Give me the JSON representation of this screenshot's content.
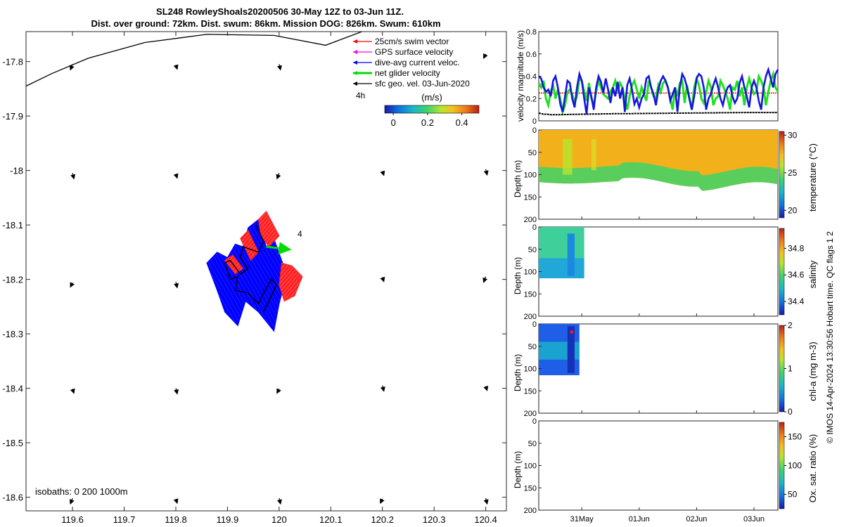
{
  "figure": {
    "title_line1": "SL248 RowleyShoals20200506 30-May 12Z to 03-Jun 11Z.",
    "title_line2": "Dist. over ground: 72km. Dist. swum: 86km. Mission DOG: 826km. Swum: 610km",
    "credit": "© IMOS 14-Apr-2024 13:30:56 Hobart time. QC flags 1  2"
  },
  "map": {
    "xticks": [
      "119.6",
      "119.7",
      "119.8",
      "119.9",
      "120",
      "120.1",
      "120.2",
      "120.3",
      "120.4"
    ],
    "xtick_values": [
      119.6,
      119.7,
      119.8,
      119.9,
      120.0,
      120.1,
      120.2,
      120.3,
      120.4
    ],
    "yticks": [
      "-17.8",
      "-17.9",
      "-18",
      "-18.1",
      "-18.2",
      "-18.3",
      "-18.4",
      "-18.5",
      "-18.6"
    ],
    "ytick_values": [
      -17.8,
      -17.9,
      -18.0,
      -18.1,
      -18.2,
      -18.3,
      -18.4,
      -18.5,
      -18.6
    ],
    "xlim": [
      119.51,
      120.44
    ],
    "ylim": [
      -18.625,
      -17.745
    ],
    "isobath_label": "isobaths: 0   200  1000m",
    "legend": [
      {
        "label": "25cm/s swim vector",
        "color": "#ff0000"
      },
      {
        "label": "GPS surface velocity",
        "color": "#ff00ff"
      },
      {
        "label": "dive-avg current veloc.",
        "color": "#0000ff"
      },
      {
        "label": "net glider velocity",
        "color": "#00dd00"
      },
      {
        "label": "sfc geo. vel. 03-Jun-2020",
        "color": "#000000"
      }
    ],
    "label_4h": "4h",
    "colorbar_title": "(m/s)",
    "colorbar_ticks": [
      "0",
      "0.2",
      "0.4"
    ],
    "colorbar_tick_values": [
      0,
      0.2,
      0.4
    ],
    "colorbar_range": [
      -0.05,
      0.5
    ],
    "net_velocity_label": "4",
    "coast": [
      [
        119.51,
        -17.845
      ],
      [
        119.56,
        -17.822
      ],
      [
        119.63,
        -17.794
      ],
      [
        119.74,
        -17.765
      ],
      [
        119.86,
        -17.75
      ],
      [
        119.99,
        -17.752
      ],
      [
        120.09,
        -17.77
      ],
      [
        120.16,
        -17.745
      ]
    ],
    "geo_arrows": [
      {
        "x": 119.6,
        "y": -17.81
      },
      {
        "x": 119.8,
        "y": -17.81
      },
      {
        "x": 120.0,
        "y": -17.81
      },
      {
        "x": 120.4,
        "y": -17.79
      },
      {
        "x": 119.6,
        "y": -18.01
      },
      {
        "x": 119.8,
        "y": -18.01
      },
      {
        "x": 120.0,
        "y": -18.01
      },
      {
        "x": 120.2,
        "y": -18.005
      },
      {
        "x": 120.4,
        "y": -18.003
      },
      {
        "x": 119.6,
        "y": -18.21
      },
      {
        "x": 119.8,
        "y": -18.21
      },
      {
        "x": 120.2,
        "y": -18.2
      },
      {
        "x": 120.4,
        "y": -18.2
      },
      {
        "x": 119.6,
        "y": -18.405
      },
      {
        "x": 119.8,
        "y": -18.405
      },
      {
        "x": 120.0,
        "y": -18.405
      },
      {
        "x": 120.2,
        "y": -18.4
      },
      {
        "x": 120.4,
        "y": -18.4
      },
      {
        "x": 119.6,
        "y": -18.607
      },
      {
        "x": 119.8,
        "y": -18.607
      },
      {
        "x": 120.0,
        "y": -18.607
      },
      {
        "x": 120.2,
        "y": -18.607
      },
      {
        "x": 120.4,
        "y": -18.607
      }
    ],
    "blue_region": [
      [
        119.88,
        -18.22
      ],
      [
        119.86,
        -18.17
      ],
      [
        119.88,
        -18.15
      ],
      [
        119.9,
        -18.16
      ],
      [
        119.915,
        -18.135
      ],
      [
        119.93,
        -18.14
      ],
      [
        119.94,
        -18.105
      ],
      [
        119.96,
        -18.09
      ],
      [
        119.975,
        -18.14
      ],
      [
        119.99,
        -18.125
      ],
      [
        120.005,
        -18.165
      ],
      [
        120.015,
        -18.19
      ],
      [
        120.0,
        -18.245
      ],
      [
        119.99,
        -18.295
      ],
      [
        119.96,
        -18.26
      ],
      [
        119.935,
        -18.24
      ],
      [
        119.92,
        -18.285
      ],
      [
        119.895,
        -18.26
      ]
    ],
    "red_regions": [
      [
        [
          119.96,
          -18.09
        ],
        [
          119.975,
          -18.075
        ],
        [
          120.0,
          -18.12
        ],
        [
          119.98,
          -18.14
        ],
        [
          119.965,
          -18.12
        ]
      ],
      [
        [
          119.925,
          -18.125
        ],
        [
          119.94,
          -18.11
        ],
        [
          119.96,
          -18.15
        ],
        [
          119.945,
          -18.165
        ]
      ],
      [
        [
          119.895,
          -18.165
        ],
        [
          119.91,
          -18.155
        ],
        [
          119.93,
          -18.18
        ],
        [
          119.915,
          -18.19
        ]
      ],
      [
        [
          120.005,
          -18.17
        ],
        [
          120.025,
          -18.175
        ],
        [
          120.045,
          -18.195
        ],
        [
          120.03,
          -18.23
        ],
        [
          120.01,
          -18.24
        ],
        [
          120.0,
          -18.21
        ]
      ]
    ],
    "track": [
      [
        119.955,
        -18.1
      ],
      [
        119.97,
        -18.13
      ],
      [
        119.96,
        -18.15
      ],
      [
        119.93,
        -18.14
      ],
      [
        119.925,
        -18.16
      ],
      [
        119.94,
        -18.18
      ],
      [
        119.925,
        -18.19
      ],
      [
        119.905,
        -18.165
      ],
      [
        119.895,
        -18.17
      ],
      [
        119.905,
        -18.2
      ],
      [
        119.92,
        -18.195
      ],
      [
        119.915,
        -18.22
      ],
      [
        119.94,
        -18.225
      ],
      [
        119.96,
        -18.245
      ],
      [
        119.97,
        -18.225
      ],
      [
        119.985,
        -18.2
      ],
      [
        119.995,
        -18.21
      ],
      [
        119.97,
        -18.26
      ]
    ],
    "net_velocity": {
      "from": [
        119.975,
        -18.14
      ],
      "to": [
        120.02,
        -18.145
      ]
    }
  },
  "velocity_panel": {
    "ylabel": "velocity magnitude (m/s)",
    "yticks": [
      "0",
      "0.2",
      "0.4",
      "0.6",
      "0.8"
    ],
    "ytick_values": [
      0,
      0.2,
      0.4,
      0.6,
      0.8
    ],
    "ylim": [
      0,
      0.8
    ],
    "xlim": [
      0,
      100
    ],
    "swim_level": 0.25,
    "blue_series": [
      0.4,
      0.38,
      0.3,
      0.26,
      0.28,
      0.22,
      0.36,
      0.4,
      0.3,
      0.15,
      0.08,
      0.22,
      0.36,
      0.34,
      0.2,
      0.12,
      0.3,
      0.42,
      0.36,
      0.2,
      0.06,
      0.3,
      0.22,
      0.1,
      0.3,
      0.4,
      0.35,
      0.25,
      0.38,
      0.28,
      0.16,
      0.3,
      0.22,
      0.35,
      0.2,
      0.3,
      0.08,
      0.32,
      0.38,
      0.28,
      0.15,
      0.2,
      0.12,
      0.2,
      0.24,
      0.38,
      0.4,
      0.3,
      0.24,
      0.14,
      0.28,
      0.36,
      0.4,
      0.36,
      0.3,
      0.18,
      0.24,
      0.3,
      0.08,
      0.3,
      0.42,
      0.38,
      0.3,
      0.2,
      0.1,
      0.22,
      0.38,
      0.42,
      0.4,
      0.3,
      0.1,
      0.2,
      0.24,
      0.32,
      0.38,
      0.3,
      0.2,
      0.14,
      0.24,
      0.3,
      0.32,
      0.22,
      0.16,
      0.2,
      0.34,
      0.4,
      0.3,
      0.22,
      0.12,
      0.3,
      0.36,
      0.3,
      0.18,
      0.1,
      0.3,
      0.4,
      0.46,
      0.38,
      0.3,
      0.42,
      0.46
    ],
    "green_series": [
      0.34,
      0.3,
      0.36,
      0.2,
      0.14,
      0.26,
      0.32,
      0.2,
      0.28,
      0.2,
      0.08,
      0.14,
      0.26,
      0.28,
      0.24,
      0.16,
      0.22,
      0.38,
      0.36,
      0.26,
      0.18,
      0.34,
      0.2,
      0.14,
      0.26,
      0.36,
      0.3,
      0.24,
      0.22,
      0.2,
      0.26,
      0.3,
      0.36,
      0.26,
      0.34,
      0.3,
      0.2,
      0.1,
      0.22,
      0.32,
      0.36,
      0.28,
      0.2,
      0.3,
      0.24,
      0.18,
      0.36,
      0.3,
      0.22,
      0.2,
      0.32,
      0.26,
      0.34,
      0.36,
      0.3,
      0.2,
      0.1,
      0.3,
      0.22,
      0.34,
      0.36,
      0.16,
      0.32,
      0.2,
      0.1,
      0.3,
      0.38,
      0.32,
      0.2,
      0.16,
      0.26,
      0.36,
      0.3,
      0.14,
      0.2,
      0.22,
      0.36,
      0.32,
      0.26,
      0.2,
      0.1,
      0.3,
      0.28,
      0.36,
      0.22,
      0.3,
      0.14,
      0.3,
      0.38,
      0.3,
      0.24,
      0.26,
      0.4,
      0.36,
      0.3,
      0.14,
      0.26,
      0.36,
      0.42,
      0.3,
      0.26
    ],
    "black_series": [
      0.07,
      0.065,
      0.06,
      0.06,
      0.058,
      0.055,
      0.055,
      0.055,
      0.055,
      0.056,
      0.056,
      0.057,
      0.057,
      0.058,
      0.058,
      0.058,
      0.059,
      0.059,
      0.06,
      0.06,
      0.06,
      0.06,
      0.061,
      0.061,
      0.062,
      0.062,
      0.062,
      0.063,
      0.063,
      0.063,
      0.063,
      0.064,
      0.064,
      0.064,
      0.064,
      0.065,
      0.065,
      0.065,
      0.065,
      0.065,
      0.066,
      0.066,
      0.066,
      0.066,
      0.066,
      0.067,
      0.067,
      0.067,
      0.067,
      0.067,
      0.068,
      0.068,
      0.068,
      0.068,
      0.068,
      0.069,
      0.069,
      0.069,
      0.069,
      0.069,
      0.07,
      0.07,
      0.07,
      0.07,
      0.07,
      0.071,
      0.071,
      0.071,
      0.071,
      0.071,
      0.072,
      0.072,
      0.072,
      0.072,
      0.072,
      0.073,
      0.073,
      0.073,
      0.073,
      0.073,
      0.074,
      0.074,
      0.074,
      0.074,
      0.074,
      0.075,
      0.075,
      0.075,
      0.075,
      0.075,
      0.075,
      0.075,
      0.075,
      0.075,
      0.075,
      0.075,
      0.075,
      0.075,
      0.075,
      0.075,
      0.075
    ]
  },
  "depth_panels": [
    {
      "key": "temperature",
      "label": "temperature (°C)",
      "ticks": [
        "20",
        "25",
        "30"
      ],
      "tick_values": [
        20,
        25,
        30
      ],
      "range": [
        19,
        30.5
      ],
      "colors": [
        "#1a1aa8",
        "#0f6fe0",
        "#19b8c8",
        "#3fd36a",
        "#b8e52d",
        "#f4c21c",
        "#f07a1a",
        "#b82016"
      ]
    },
    {
      "key": "salinity",
      "label": "salinity",
      "ticks": [
        "34.4",
        "34.6",
        "34.8"
      ],
      "tick_values": [
        34.4,
        34.6,
        34.8
      ],
      "range": [
        34.3,
        34.95
      ],
      "colors": [
        "#1a1aa8",
        "#0f6fe0",
        "#19b8c8",
        "#3fd36a",
        "#b8e52d",
        "#f4c21c",
        "#f07a1a",
        "#b82016"
      ]
    },
    {
      "key": "chla",
      "label": "chl-a (mg m-3)",
      "ticks": [
        "0",
        "1",
        "2"
      ],
      "tick_values": [
        0,
        1,
        2
      ],
      "range": [
        0,
        2
      ],
      "colors": [
        "#1a1aa8",
        "#0f6fe0",
        "#19b8c8",
        "#3fd36a",
        "#b8e52d",
        "#f4c21c",
        "#f07a1a",
        "#b82016"
      ]
    },
    {
      "key": "oxygen",
      "label": "Ox. sat. ratio (%)",
      "ticks": [
        "50",
        "100",
        "150"
      ],
      "tick_values": [
        50,
        100,
        150
      ],
      "range": [
        25,
        175
      ],
      "colors": [
        "#1a1aa8",
        "#0f6fe0",
        "#19b8c8",
        "#3fd36a",
        "#b8e52d",
        "#f4c21c",
        "#f07a1a",
        "#b82016"
      ]
    }
  ],
  "depth_axis": {
    "ylabel": "Depth (m)",
    "yticks": [
      "0",
      "50",
      "100",
      "150",
      "200"
    ],
    "ytick_values": [
      0,
      50,
      100,
      150,
      200
    ],
    "ylim": [
      0,
      200
    ]
  },
  "time_axis": {
    "xticks": [
      "31May",
      "01Jun",
      "02Jun",
      "03Jun"
    ],
    "xtick_values": [
      18,
      42,
      66,
      90
    ],
    "xlim": [
      0,
      100
    ]
  },
  "chart_data": [
    {
      "type": "scatter",
      "title": "SL248 RowleyShoals20200506 30-May 12Z to 03-Jun 11Z.",
      "subtitle": "Dist. over ground: 72km. Dist. swum: 86km. Mission DOG: 826km. Swum: 610km",
      "x_ticks": [
        "119.6",
        "119.7",
        "119.8",
        "119.9",
        "120",
        "120.1",
        "120.2",
        "120.3",
        "120.4"
      ],
      "y_ticks": [
        "-17.8",
        "-17.9",
        "-18",
        "-18.1",
        "-18.2",
        "-18.3",
        "-18.4",
        "-18.5",
        "-18.6"
      ],
      "xlim": [
        119.51,
        120.44
      ],
      "ylim": [
        -18.625,
        -17.745
      ],
      "legend": [
        "25cm/s swim vector",
        "GPS surface velocity",
        "dive-avg current veloc.",
        "net glider velocity",
        "sfc geo. vel. 03-Jun-2020"
      ],
      "legend_position": "top-right",
      "colorbar": {
        "title": "(m/s)",
        "ticks": [
          0,
          0.2,
          0.4
        ]
      },
      "annotations": [
        "4h",
        "4",
        "isobaths: 0   200  1000m"
      ]
    },
    {
      "type": "line",
      "ylabel": "velocity magnitude (m/s)",
      "ylim": [
        0,
        0.8
      ],
      "series": [
        {
          "color": "#0000ff"
        },
        {
          "color": "#00dd00"
        },
        {
          "color": "#000000"
        },
        {
          "color": "#ff0000",
          "constant": 0.25
        }
      ]
    },
    {
      "type": "heatmap",
      "ylabel": "Depth (m)",
      "ylim": [
        0,
        200
      ],
      "colorbar_label": "temperature (°C)",
      "colorbar_ticks": [
        20,
        25,
        30
      ],
      "x_ticks": [
        "31May",
        "01Jun",
        "02Jun",
        "03Jun"
      ]
    },
    {
      "type": "heatmap",
      "ylabel": "Depth (m)",
      "ylim": [
        0,
        200
      ],
      "colorbar_label": "salinity",
      "colorbar_ticks": [
        34.4,
        34.6,
        34.8
      ]
    },
    {
      "type": "heatmap",
      "ylabel": "Depth (m)",
      "ylim": [
        0,
        200
      ],
      "colorbar_label": "chl-a (mg m-3)",
      "colorbar_ticks": [
        0,
        1,
        2
      ]
    },
    {
      "type": "heatmap",
      "ylabel": "Depth (m)",
      "ylim": [
        0,
        200
      ],
      "colorbar_label": "Ox. sat. ratio (%)",
      "colorbar_ticks": [
        50,
        100,
        150
      ]
    }
  ]
}
